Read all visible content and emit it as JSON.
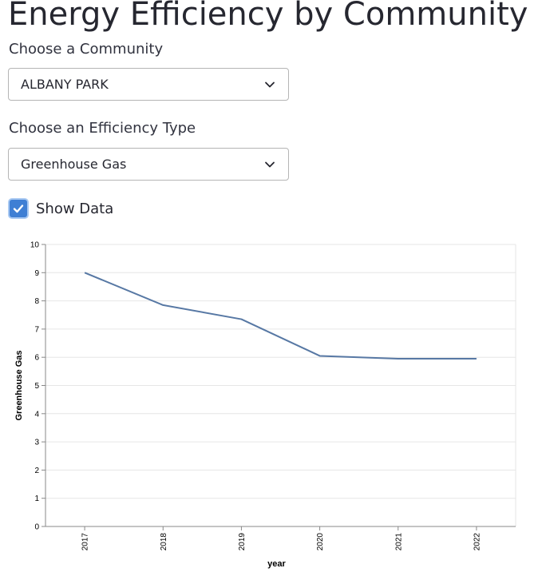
{
  "page": {
    "title": "Energy Efficiency by Community"
  },
  "community": {
    "label": "Choose a Community",
    "selected": "ALBANY PARK"
  },
  "efficiency": {
    "label": "Choose an Efficiency Type",
    "selected": "Greenhouse Gas"
  },
  "show_data": {
    "label": "Show Data",
    "checked": true
  },
  "colors": {
    "line": "#5778a4",
    "checkbox": "#3f7fd4"
  },
  "chart_data": {
    "type": "line",
    "x": [
      "2017",
      "2018",
      "2019",
      "2020",
      "2021",
      "2022"
    ],
    "values": [
      9.0,
      7.85,
      7.35,
      6.05,
      5.95,
      5.95
    ],
    "xlabel": "year",
    "ylabel": "Greenhouse Gas",
    "ylim": [
      0,
      10
    ],
    "yticks": [
      "0",
      "1",
      "2",
      "3",
      "4",
      "5",
      "6",
      "7",
      "8",
      "9",
      "10"
    ],
    "grid": true
  }
}
